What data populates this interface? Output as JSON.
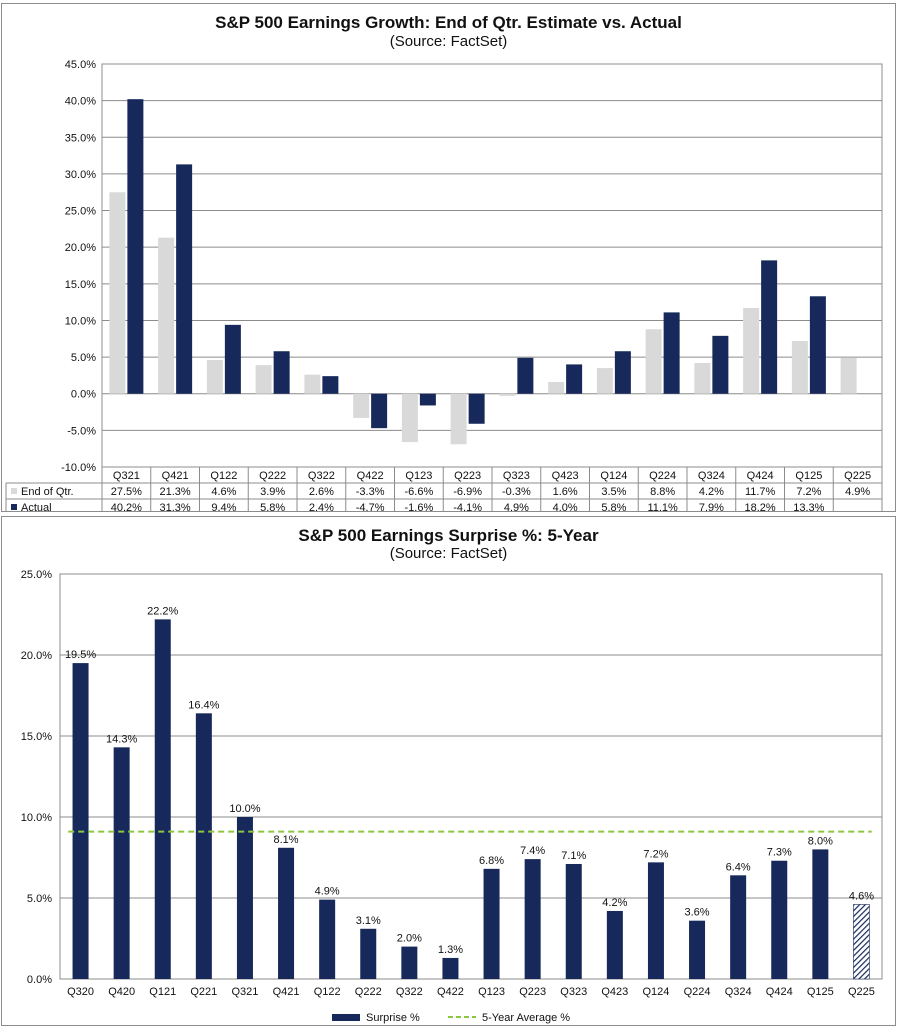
{
  "chart_data": [
    {
      "type": "bar",
      "title": "S&P 500 Earnings Growth: End of Qtr. Estimate vs. Actual",
      "subtitle": "(Source: FactSet)",
      "categories": [
        "Q321",
        "Q421",
        "Q122",
        "Q222",
        "Q322",
        "Q422",
        "Q123",
        "Q223",
        "Q323",
        "Q423",
        "Q124",
        "Q224",
        "Q324",
        "Q424",
        "Q125",
        "Q225"
      ],
      "ylim": [
        -10,
        45
      ],
      "yticks": [
        "-10.0%",
        "-5.0%",
        "0.0%",
        "5.0%",
        "10.0%",
        "15.0%",
        "20.0%",
        "25.0%",
        "30.0%",
        "35.0%",
        "40.0%",
        "45.0%"
      ],
      "grid": true,
      "legend": "data-table",
      "series": [
        {
          "name": "End of Qtr.",
          "color": "#d9d9d9",
          "values": [
            27.5,
            21.3,
            4.6,
            3.9,
            2.6,
            -3.3,
            -6.6,
            -6.9,
            -0.3,
            1.6,
            3.5,
            8.8,
            4.2,
            11.7,
            7.2,
            4.9
          ],
          "labels": [
            "27.5%",
            "21.3%",
            "4.6%",
            "3.9%",
            "2.6%",
            "-3.3%",
            "-6.6%",
            "-6.9%",
            "-0.3%",
            "1.6%",
            "3.5%",
            "8.8%",
            "4.2%",
            "11.7%",
            "7.2%",
            "4.9%"
          ]
        },
        {
          "name": "Actual",
          "color": "#17295a",
          "values": [
            40.2,
            31.3,
            9.4,
            5.8,
            2.4,
            -4.7,
            -1.6,
            -4.1,
            4.9,
            4.0,
            5.8,
            11.1,
            7.9,
            18.2,
            13.3,
            null
          ],
          "labels": [
            "40.2%",
            "31.3%",
            "9.4%",
            "5.8%",
            "2.4%",
            "-4.7%",
            "-1.6%",
            "-4.1%",
            "4.9%",
            "4.0%",
            "5.8%",
            "11.1%",
            "7.9%",
            "18.2%",
            "13.3%",
            ""
          ]
        }
      ]
    },
    {
      "type": "bar",
      "title": "S&P 500 Earnings Surprise %: 5-Year",
      "subtitle": "(Source: FactSet)",
      "categories": [
        "Q320",
        "Q420",
        "Q121",
        "Q221",
        "Q321",
        "Q421",
        "Q122",
        "Q222",
        "Q322",
        "Q422",
        "Q123",
        "Q223",
        "Q323",
        "Q423",
        "Q124",
        "Q224",
        "Q324",
        "Q424",
        "Q125",
        "Q225"
      ],
      "ylim": [
        0,
        25
      ],
      "yticks": [
        "0.0%",
        "5.0%",
        "10.0%",
        "15.0%",
        "20.0%",
        "25.0%"
      ],
      "grid": true,
      "legend": "bottom-center",
      "series": [
        {
          "name": "Surprise %",
          "color": "#17295a",
          "values": [
            19.5,
            14.3,
            22.2,
            16.4,
            10.0,
            8.1,
            4.9,
            3.1,
            2.0,
            1.3,
            6.8,
            7.4,
            7.1,
            4.2,
            7.2,
            3.6,
            6.4,
            7.3,
            8.0,
            4.6
          ],
          "labels": [
            "19.5%",
            "14.3%",
            "22.2%",
            "16.4%",
            "10.0%",
            "8.1%",
            "4.9%",
            "3.1%",
            "2.0%",
            "1.3%",
            "6.8%",
            "7.4%",
            "7.1%",
            "4.2%",
            "7.2%",
            "3.6%",
            "6.4%",
            "7.3%",
            "8.0%",
            "4.6%"
          ],
          "hatched_last": true
        },
        {
          "name": "5-Year Average %",
          "color": "#8dc63f",
          "line": "dashed",
          "value": 9.1
        }
      ]
    }
  ]
}
